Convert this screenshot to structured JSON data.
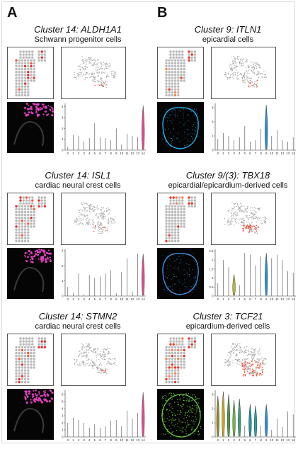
{
  "figure": {
    "panel_a_letter": "A",
    "panel_b_letter": "B"
  },
  "panels": [
    {
      "id": "a1",
      "cluster_label": "Cluster 14:",
      "gene": "ALDH1A1",
      "celltype": "Schwann progenitor cells",
      "stain": "#e040c0",
      "violin": {
        "color": "#e0508c",
        "x": 14
      }
    },
    {
      "id": "a2",
      "cluster_label": "Cluster 14:",
      "gene": "ISL1",
      "celltype": "cardiac neural crest cells",
      "stain": "#e040c0",
      "violin": {
        "color": "#e0508c",
        "x": 14
      }
    },
    {
      "id": "a3",
      "cluster_label": "Cluster 14:",
      "gene": "STMN2",
      "celltype": "cardiac neural crest cells",
      "stain": "#e040c0",
      "violin": {
        "color": "#e0508c",
        "x": 14
      }
    },
    {
      "id": "b1",
      "cluster_label": "Cluster 9:",
      "gene": "ITLN1",
      "celltype": "epicardial cells",
      "stain": "#1fb0f0",
      "violin": {
        "color": "#2a8fd0",
        "x": 9
      }
    },
    {
      "id": "b2",
      "cluster_label": "Cluster 9/(3):",
      "gene": "TBX18",
      "celltype": "epicardial/epicardium-derived cells",
      "stain": "#3a8fe0",
      "violin": {
        "color": "#2a8fd0",
        "x": 9
      }
    },
    {
      "id": "b3",
      "cluster_label": "Cluster 3:",
      "gene": "TCF21",
      "celltype": "epicardium-derived cells",
      "stain": "#70d040",
      "violin": {
        "color": "#2a8fd0",
        "x": 9
      }
    }
  ],
  "chart_data": [
    {
      "type": "violin",
      "panel": "a1",
      "x": [
        0,
        1,
        2,
        3,
        4,
        5,
        6,
        7,
        8,
        9,
        10,
        11,
        12,
        13,
        14
      ],
      "tick_labels": [
        "0",
        "1",
        "2",
        "3",
        "4",
        "5",
        "6",
        "7",
        "8",
        "9",
        "10",
        "11",
        "12",
        "13",
        "14"
      ],
      "yticks": [
        "0",
        "1",
        "2",
        "3",
        "4"
      ],
      "ylim": [
        0,
        4.3
      ],
      "max_values": [
        0.3,
        1.4,
        1.3,
        0.8,
        1.1,
        2.5,
        1.2,
        1.1,
        0.9,
        2.0,
        0.5,
        1.5,
        1.3,
        1.2,
        4.1
      ],
      "highlight": 14
    },
    {
      "type": "violin",
      "panel": "a2",
      "x": [
        0,
        1,
        2,
        3,
        4,
        5,
        6,
        7,
        8,
        9,
        10,
        11,
        12,
        13,
        14
      ],
      "tick_labels": [
        "0",
        "1",
        "2",
        "3",
        "4",
        "5",
        "6",
        "7",
        "8",
        "9",
        "10",
        "11",
        "12",
        "13",
        "14"
      ],
      "yticks": [
        "0",
        "1",
        "2",
        "3"
      ],
      "ylim": [
        0,
        3.1
      ],
      "max_values": [
        0.6,
        0.2,
        1.5,
        0.1,
        1.4,
        1.2,
        1.3,
        1.5,
        1.7,
        0.2,
        1.6,
        2.5,
        0.3,
        2.8,
        2.8
      ],
      "highlight": 14
    },
    {
      "type": "violin",
      "panel": "a3",
      "x": [
        0,
        1,
        2,
        3,
        4,
        5,
        6,
        7,
        8,
        9,
        10,
        11,
        12,
        13,
        14
      ],
      "tick_labels": [
        "0",
        "1",
        "2",
        "3",
        "4",
        "5",
        "6",
        "7",
        "8",
        "9",
        "10",
        "11",
        "12",
        "13",
        "14"
      ],
      "yticks": [
        "0",
        "1",
        "2",
        "3",
        "4",
        "5",
        "6"
      ],
      "ylim": [
        0,
        6.6
      ],
      "max_values": [
        2.0,
        2.7,
        2.4,
        2.0,
        1.3,
        1.8,
        1.3,
        1.5,
        2.3,
        2.4,
        1.5,
        3.7,
        2.6,
        3.4,
        6.3
      ],
      "highlight": 14
    },
    {
      "type": "violin",
      "panel": "b1",
      "x": [
        0,
        1,
        2,
        3,
        4,
        5,
        6,
        7,
        8,
        9,
        10,
        11,
        12,
        13,
        14
      ],
      "tick_labels": [
        "0",
        "1",
        "2",
        "3",
        "4",
        "5",
        "6",
        "7",
        "8",
        "9",
        "10",
        "11",
        "12",
        "13",
        "14"
      ],
      "yticks": [
        "0",
        "1",
        "2",
        "3"
      ],
      "ylim": [
        0,
        3.3
      ],
      "max_values": [
        0.8,
        1.2,
        1.0,
        0.7,
        0.9,
        1.7,
        0.6,
        0.7,
        1.5,
        3.2,
        1.0,
        1.4,
        0.7,
        0.6,
        0.9
      ],
      "highlight": 9
    },
    {
      "type": "violin",
      "panel": "b2",
      "x": [
        0,
        1,
        2,
        3,
        4,
        5,
        6,
        7,
        8,
        9,
        10,
        11,
        12,
        13,
        14
      ],
      "tick_labels": [
        "0",
        "1",
        "2",
        "3",
        "4",
        "5",
        "6",
        "7",
        "8",
        "9",
        "10",
        "11",
        "12",
        "13",
        "14"
      ],
      "yticks": [
        "0",
        "0.5",
        "1",
        "1.5",
        "2",
        "2.5"
      ],
      "ylim": [
        0,
        2.6
      ],
      "max_values": [
        0.7,
        2.0,
        1.6,
        1.2,
        0.6,
        2.4,
        2.3,
        1.7,
        2.2,
        2.4,
        2.1,
        2.3,
        2.0,
        1.4,
        1.3
      ],
      "highlight": 9,
      "highlight_extra": [
        {
          "x": 3,
          "color": "#b9b83a"
        }
      ]
    },
    {
      "type": "violin",
      "panel": "b3",
      "x": [
        0,
        1,
        2,
        3,
        4,
        5,
        6,
        7,
        8,
        9,
        10,
        11,
        12,
        13,
        14
      ],
      "tick_labels": [
        "0",
        "1",
        "2",
        "3",
        "4",
        "5",
        "6",
        "7",
        "8",
        "9",
        "10",
        "11",
        "12",
        "13",
        "14"
      ],
      "yticks": [
        "0",
        "1",
        "2",
        "3"
      ],
      "ylim": [
        0,
        3.3
      ],
      "max_values": [
        2.9,
        3.2,
        3.0,
        2.6,
        2.7,
        0.8,
        2.3,
        2.2,
        0.8,
        2.3,
        0.5,
        1.3,
        0.7,
        1.8,
        1.6
      ],
      "highlight": 9,
      "highlight_extra": [
        {
          "x": 0,
          "color": "#8e8d2a"
        },
        {
          "x": 1,
          "color": "#c9a62c"
        },
        {
          "x": 2,
          "color": "#4a9a4a"
        },
        {
          "x": 3,
          "color": "#74b54a"
        },
        {
          "x": 4,
          "color": "#3a9a7a"
        },
        {
          "x": 6,
          "color": "#2b8fa0"
        },
        {
          "x": 7,
          "color": "#2aa0a0"
        }
      ]
    }
  ]
}
